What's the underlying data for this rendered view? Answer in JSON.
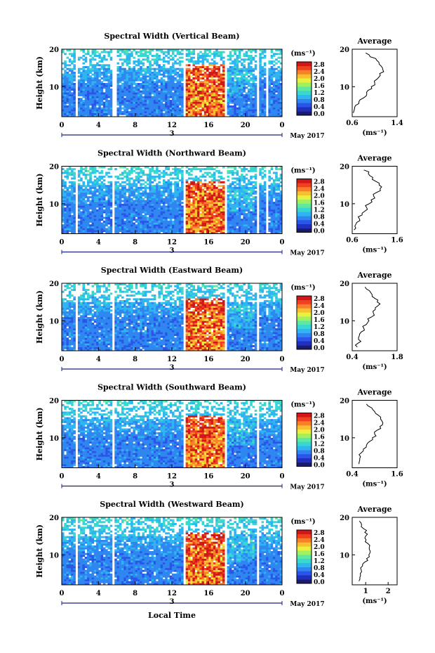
{
  "units_label": "(ms⁻¹)",
  "date_label": "May 2017",
  "day_label": "3",
  "xlabel": "Local Time",
  "ylabel": "Height (km)",
  "avg_title": "Average",
  "avg_xlabel": "(ms⁻¹)",
  "colorbar_ticks": [
    "0.0",
    "0.4",
    "0.8",
    "1.2",
    "1.6",
    "2.0",
    "2.4",
    "2.8"
  ],
  "colors": {
    "colormap": [
      "#1a1a6e",
      "#1f2fc0",
      "#2a55e8",
      "#2f86f0",
      "#2fb5f0",
      "#38d8d0",
      "#5ee8a0",
      "#a0f060",
      "#e8f040",
      "#f8c030",
      "#f88028",
      "#f04020",
      "#d01818"
    ],
    "axis": "#000000",
    "day_marker": "#1a237e"
  },
  "chart_data": [
    {
      "type": "heatmap",
      "title": "Spectral Width (Vertical Beam)",
      "xlim": [
        0,
        24
      ],
      "ylim": [
        2,
        20
      ],
      "xticks": [
        "0",
        "4",
        "8",
        "12",
        "16",
        "20",
        "0"
      ],
      "yticks": [
        "10",
        "20"
      ],
      "value_unit": "ms⁻¹",
      "gaps_hours": [
        [
          1.5,
          1.8
        ],
        [
          5.6,
          5.9
        ],
        [
          13.2,
          13.6
        ],
        [
          17.8,
          18.1
        ],
        [
          21.3,
          21.6
        ],
        [
          22.2,
          22.4
        ]
      ],
      "average": {
        "xlim": [
          0.6,
          1.4
        ],
        "xticks": [
          "0.6",
          "1.4"
        ],
        "yticks": [
          "10",
          "20"
        ],
        "heights_km": [
          3,
          4,
          5,
          6,
          7,
          8,
          9,
          10,
          11,
          12,
          13,
          14,
          15,
          16,
          17,
          18,
          19
        ],
        "values": [
          0.62,
          0.64,
          0.66,
          0.72,
          0.8,
          0.86,
          0.88,
          0.94,
          1.0,
          1.04,
          1.1,
          1.16,
          1.14,
          1.08,
          1.04,
          0.92,
          0.84
        ]
      }
    },
    {
      "type": "heatmap",
      "title": "Spectral Width (Northward Beam)",
      "xlim": [
        0,
        24
      ],
      "ylim": [
        2,
        20
      ],
      "xticks": [
        "0",
        "4",
        "8",
        "12",
        "16",
        "20",
        "0"
      ],
      "yticks": [
        "10",
        "20"
      ],
      "value_unit": "ms⁻¹",
      "gaps_hours": [
        [
          1.6,
          1.8
        ],
        [
          5.6,
          5.8
        ],
        [
          13.2,
          13.6
        ],
        [
          17.8,
          18.1
        ],
        [
          21.3,
          21.6
        ],
        [
          22.2,
          22.4
        ]
      ],
      "average": {
        "xlim": [
          0.6,
          1.6
        ],
        "xticks": [
          "0.6",
          "1.6"
        ],
        "yticks": [
          "10",
          "20"
        ],
        "heights_km": [
          3,
          4,
          5,
          6,
          7,
          8,
          9,
          10,
          11,
          12,
          13,
          14,
          15,
          16,
          17,
          18,
          19
        ],
        "values": [
          0.64,
          0.66,
          0.7,
          0.76,
          0.82,
          0.88,
          0.92,
          0.98,
          1.02,
          1.08,
          1.14,
          1.22,
          1.2,
          1.12,
          1.06,
          0.96,
          0.86
        ]
      }
    },
    {
      "type": "heatmap",
      "title": "Spectral Width (Eastward Beam)",
      "xlim": [
        0,
        24
      ],
      "ylim": [
        2,
        20
      ],
      "xticks": [
        "0",
        "4",
        "8",
        "12",
        "16",
        "20",
        "0"
      ],
      "yticks": [
        "10",
        "20"
      ],
      "value_unit": "ms⁻¹",
      "gaps_hours": [
        [
          1.6,
          1.8
        ],
        [
          5.6,
          5.8
        ],
        [
          13.2,
          13.6
        ],
        [
          17.8,
          18.1
        ],
        [
          21.3,
          21.6
        ]
      ],
      "average": {
        "xlim": [
          0.4,
          1.8
        ],
        "xticks": [
          "0.4",
          "1.8"
        ],
        "yticks": [
          "10",
          "20"
        ],
        "heights_km": [
          3,
          4,
          5,
          6,
          7,
          8,
          9,
          10,
          11,
          12,
          13,
          14,
          15,
          16,
          17,
          18,
          19
        ],
        "values": [
          0.56,
          0.58,
          0.6,
          0.62,
          0.68,
          0.76,
          0.84,
          0.92,
          1.0,
          1.06,
          1.12,
          1.2,
          1.18,
          1.1,
          1.02,
          0.94,
          0.8
        ]
      }
    },
    {
      "type": "heatmap",
      "title": "Spectral Width (Southward Beam)",
      "xlim": [
        0,
        24
      ],
      "ylim": [
        2,
        20
      ],
      "xticks": [
        "0",
        "4",
        "8",
        "12",
        "16",
        "20",
        "0"
      ],
      "yticks": [
        "10",
        "20"
      ],
      "value_unit": "ms⁻¹",
      "gaps_hours": [
        [
          1.6,
          1.8
        ],
        [
          5.6,
          5.8
        ],
        [
          13.2,
          13.6
        ],
        [
          17.8,
          18.1
        ],
        [
          21.3,
          21.6
        ]
      ],
      "average": {
        "xlim": [
          0.4,
          1.6
        ],
        "xticks": [
          "0.4",
          "1.6"
        ],
        "yticks": [
          "10",
          "20"
        ],
        "heights_km": [
          3,
          4,
          5,
          6,
          7,
          8,
          9,
          10,
          11,
          12,
          13,
          14,
          15,
          16,
          17,
          18,
          19
        ],
        "values": [
          0.58,
          0.6,
          0.62,
          0.64,
          0.7,
          0.78,
          0.86,
          0.94,
          1.0,
          1.06,
          1.14,
          1.22,
          1.16,
          1.1,
          1.0,
          0.92,
          0.78
        ]
      }
    },
    {
      "type": "heatmap",
      "title": "Spectral Width (Westward Beam)",
      "xlim": [
        0,
        24
      ],
      "ylim": [
        2,
        20
      ],
      "xticks": [
        "0",
        "4",
        "8",
        "12",
        "16",
        "20",
        "0"
      ],
      "yticks": [
        "10",
        "20"
      ],
      "value_unit": "ms⁻¹",
      "gaps_hours": [
        [
          1.6,
          1.8
        ],
        [
          5.6,
          5.8
        ],
        [
          13.2,
          13.6
        ],
        [
          17.8,
          18.1
        ],
        [
          21.3,
          21.6
        ]
      ],
      "average": {
        "xlim": [
          0.4,
          2.4
        ],
        "xticks": [
          "1",
          "2"
        ],
        "yticks": [
          "10",
          "20"
        ],
        "heights_km": [
          3,
          4,
          5,
          6,
          7,
          8,
          9,
          10,
          11,
          12,
          13,
          14,
          15,
          16,
          17,
          18,
          19
        ],
        "values": [
          0.7,
          0.74,
          0.76,
          0.8,
          0.86,
          0.94,
          1.04,
          1.14,
          1.2,
          1.16,
          1.1,
          1.02,
          1.0,
          0.96,
          0.9,
          0.82,
          0.72
        ]
      }
    }
  ]
}
